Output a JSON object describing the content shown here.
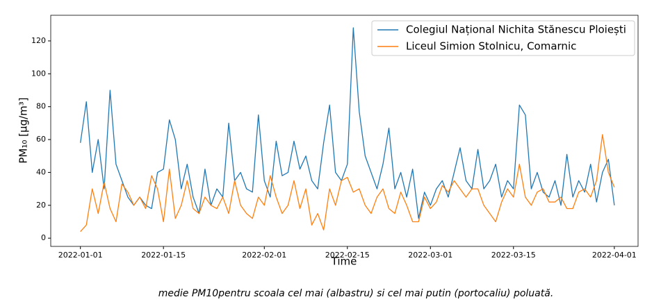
{
  "chart_data": {
    "type": "line",
    "xlabel": "Time",
    "ylabel": "PM₁₀ [μg/m³]",
    "caption": "medie PM10pentru scoala cel mai (albastru) si cel mai putin (portocaliu) poluată.",
    "legend": "upper right",
    "x": [
      "2022-01-01",
      "2022-01-02",
      "2022-01-03",
      "2022-01-04",
      "2022-01-05",
      "2022-01-06",
      "2022-01-07",
      "2022-01-08",
      "2022-01-09",
      "2022-01-10",
      "2022-01-11",
      "2022-01-12",
      "2022-01-13",
      "2022-01-14",
      "2022-01-15",
      "2022-01-16",
      "2022-01-17",
      "2022-01-18",
      "2022-01-19",
      "2022-01-20",
      "2022-01-21",
      "2022-01-22",
      "2022-01-23",
      "2022-01-24",
      "2022-01-25",
      "2022-01-26",
      "2022-01-27",
      "2022-01-28",
      "2022-01-29",
      "2022-01-30",
      "2022-01-31",
      "2022-02-01",
      "2022-02-02",
      "2022-02-03",
      "2022-02-04",
      "2022-02-05",
      "2022-02-06",
      "2022-02-07",
      "2022-02-08",
      "2022-02-09",
      "2022-02-10",
      "2022-02-11",
      "2022-02-12",
      "2022-02-13",
      "2022-02-14",
      "2022-02-15",
      "2022-02-16",
      "2022-02-17",
      "2022-02-18",
      "2022-02-19",
      "2022-02-20",
      "2022-02-21",
      "2022-02-22",
      "2022-02-23",
      "2022-02-24",
      "2022-02-25",
      "2022-02-26",
      "2022-02-27",
      "2022-02-28",
      "2022-03-01",
      "2022-03-02",
      "2022-03-03",
      "2022-03-04",
      "2022-03-05",
      "2022-03-06",
      "2022-03-07",
      "2022-03-08",
      "2022-03-09",
      "2022-03-10",
      "2022-03-11",
      "2022-03-12",
      "2022-03-13",
      "2022-03-14",
      "2022-03-15",
      "2022-03-16",
      "2022-03-17",
      "2022-03-18",
      "2022-03-19",
      "2022-03-20",
      "2022-03-21",
      "2022-03-22",
      "2022-03-23",
      "2022-03-24",
      "2022-03-25",
      "2022-03-26",
      "2022-03-27",
      "2022-03-28",
      "2022-03-29",
      "2022-03-30",
      "2022-03-31",
      "2022-04-01"
    ],
    "series": [
      {
        "name": "Colegiul Național Nichita Stănescu Ploiești",
        "color": "#1f77b4",
        "values": [
          58,
          83,
          40,
          60,
          30,
          90,
          45,
          35,
          25,
          20,
          25,
          20,
          18,
          40,
          42,
          72,
          60,
          30,
          45,
          25,
          15,
          42,
          20,
          30,
          25,
          70,
          35,
          40,
          30,
          28,
          75,
          35,
          25,
          59,
          38,
          40,
          59,
          42,
          50,
          35,
          30,
          58,
          81,
          40,
          35,
          45,
          128,
          77,
          50,
          40,
          30,
          45,
          67,
          30,
          40,
          25,
          42,
          12,
          28,
          20,
          30,
          35,
          25,
          40,
          55,
          35,
          30,
          54,
          30,
          35,
          45,
          25,
          35,
          30,
          81,
          75,
          30,
          40,
          28,
          25,
          35,
          20,
          51,
          25,
          35,
          28,
          45,
          22,
          40,
          48,
          20
        ]
      },
      {
        "name": "Liceul Simion Stolnicu, Comarnic",
        "color": "#ff7f0e",
        "values": [
          4,
          8,
          30,
          15,
          34,
          18,
          10,
          33,
          28,
          20,
          25,
          18,
          38,
          30,
          10,
          42,
          12,
          20,
          35,
          18,
          15,
          25,
          20,
          18,
          25,
          15,
          35,
          20,
          15,
          12,
          25,
          20,
          38,
          25,
          15,
          20,
          35,
          18,
          30,
          8,
          15,
          5,
          30,
          20,
          35,
          37,
          28,
          30,
          20,
          15,
          25,
          30,
          18,
          15,
          28,
          20,
          10,
          10,
          25,
          18,
          22,
          32,
          28,
          35,
          30,
          25,
          30,
          30,
          20,
          15,
          10,
          22,
          30,
          25,
          45,
          25,
          20,
          28,
          30,
          22,
          22,
          25,
          18,
          18,
          28,
          30,
          25,
          35,
          63,
          40,
          31
        ]
      }
    ],
    "xlim": [
      "2021-12-27",
      "2022-04-05"
    ],
    "xticks": [
      "2022-01-01",
      "2022-01-15",
      "2022-02-01",
      "2022-02-15",
      "2022-03-01",
      "2022-03-15",
      "2022-04-01"
    ],
    "ylim": [
      -5,
      135.6
    ],
    "yticks": [
      0,
      20,
      40,
      60,
      80,
      100,
      120
    ]
  }
}
